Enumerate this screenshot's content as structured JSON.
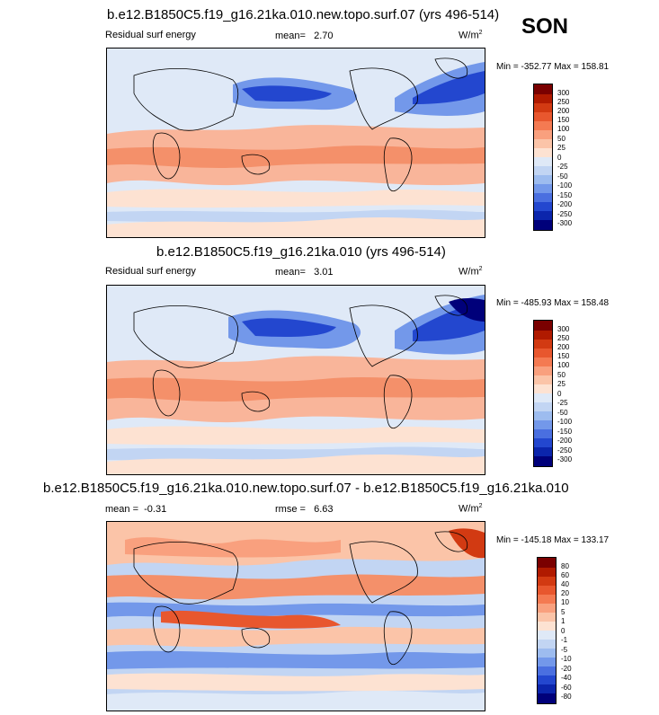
{
  "season": "SON",
  "panels": [
    {
      "title": "b.e12.B1850C5.f19_g16.21ka.010.new.topo.surf.07 (yrs 496-514)",
      "left_label": "Residual surf energy",
      "stat_label": "mean=",
      "stat_value": "2.70",
      "units": "W/m",
      "units_exp": "2",
      "min_max": "Min = -352.77 Max = 158.81",
      "colorbar_ticks": [
        "300",
        "250",
        "200",
        "150",
        "100",
        "50",
        "25",
        "0",
        "-25",
        "-50",
        "-100",
        "-150",
        "-200",
        "-250",
        "-300"
      ]
    },
    {
      "title": "b.e12.B1850C5.f19_g16.21ka.010 (yrs 496-514)",
      "left_label": "Residual surf energy",
      "stat_label": "mean=",
      "stat_value": "3.01",
      "units": "W/m",
      "units_exp": "2",
      "min_max": "Min = -485.93 Max = 158.48",
      "colorbar_ticks": [
        "300",
        "250",
        "200",
        "150",
        "100",
        "50",
        "25",
        "0",
        "-25",
        "-50",
        "-100",
        "-150",
        "-200",
        "-250",
        "-300"
      ]
    },
    {
      "title": "b.e12.B1850C5.f19_g16.21ka.010.new.topo.surf.07 - b.e12.B1850C5.f19_g16.21ka.010",
      "left_label": "mean =",
      "left_value": "-0.31",
      "stat_label": "rmse =",
      "stat_value": "6.63",
      "units": "W/m",
      "units_exp": "2",
      "min_max": "Min = -145.18 Max = 133.17",
      "colorbar_ticks": [
        "80",
        "60",
        "40",
        "20",
        "10",
        "5",
        "1",
        "0",
        "-1",
        "-5",
        "-10",
        "-20",
        "-40",
        "-60",
        "-80"
      ]
    }
  ],
  "colorbar_colors": [
    "#7a0000",
    "#b01a00",
    "#d23a12",
    "#e8572e",
    "#f47a52",
    "#f9a07e",
    "#fbc4a8",
    "#fde2d2",
    "#dfe9f7",
    "#c2d5f3",
    "#9dbcef",
    "#7398ea",
    "#4a6fe0",
    "#2347cf",
    "#0b25ac",
    "#00007a"
  ],
  "chart_data": [
    {
      "type": "heatmap",
      "title": "b.e12.B1850C5.f19_g16.21ka.010.new.topo.surf.07 (yrs 496-514)",
      "variable": "Residual surf energy",
      "mean": 2.7,
      "min": -352.77,
      "max": 158.81,
      "units": "W/m2",
      "levels": [
        -300,
        -250,
        -200,
        -150,
        -100,
        -50,
        -25,
        0,
        25,
        50,
        100,
        150,
        200,
        250,
        300
      ]
    },
    {
      "type": "heatmap",
      "title": "b.e12.B1850C5.f19_g16.21ka.010 (yrs 496-514)",
      "variable": "Residual surf energy",
      "mean": 3.01,
      "min": -485.93,
      "max": 158.48,
      "units": "W/m2",
      "levels": [
        -300,
        -250,
        -200,
        -150,
        -100,
        -50,
        -25,
        0,
        25,
        50,
        100,
        150,
        200,
        250,
        300
      ]
    },
    {
      "type": "heatmap",
      "title": "b.e12.B1850C5.f19_g16.21ka.010.new.topo.surf.07 - b.e12.B1850C5.f19_g16.21ka.010",
      "mean": -0.31,
      "rmse": 6.63,
      "min": -145.18,
      "max": 133.17,
      "units": "W/m2",
      "levels": [
        -80,
        -60,
        -40,
        -20,
        -10,
        -5,
        -1,
        0,
        1,
        5,
        10,
        20,
        40,
        60,
        80
      ]
    }
  ]
}
